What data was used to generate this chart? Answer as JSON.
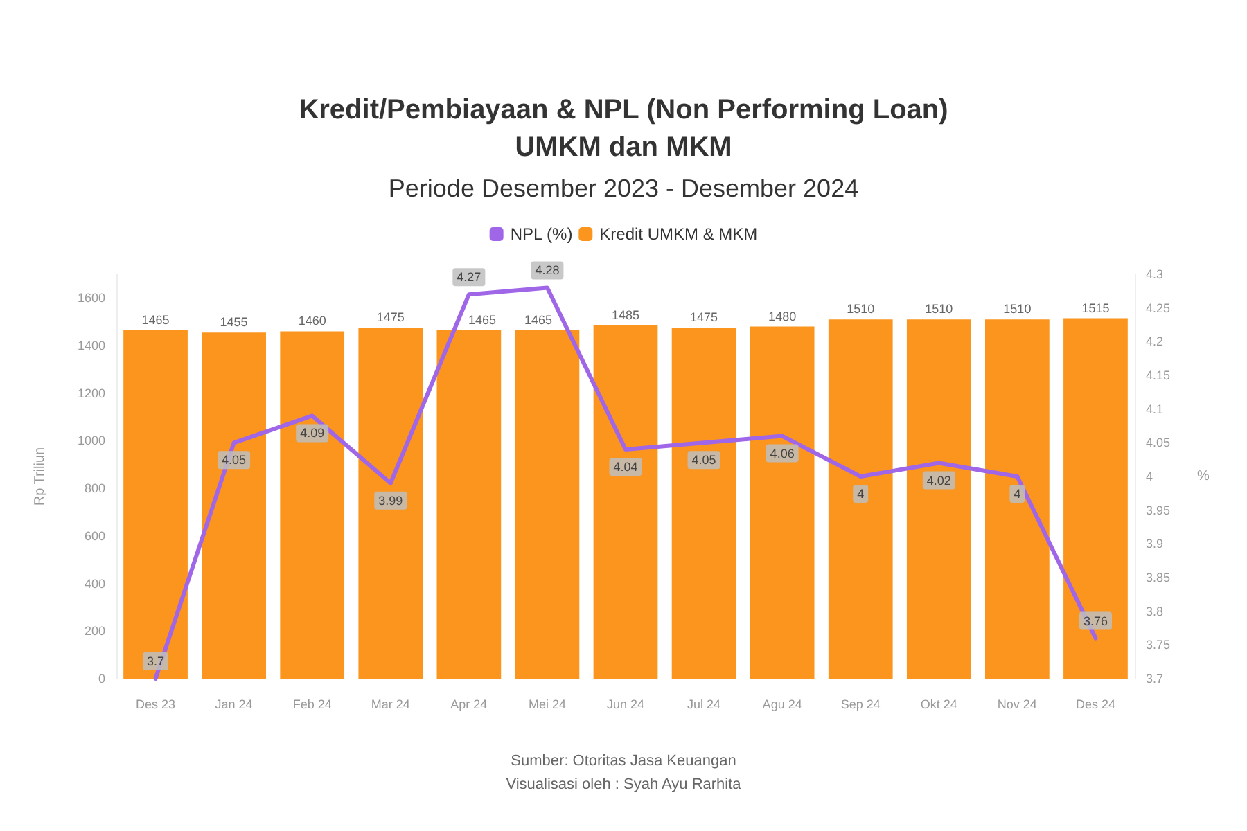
{
  "chart_data": {
    "type": "bar",
    "title": "Kredit/Pembiayaan & NPL (Non Performing Loan)\nUMKM dan MKM",
    "subtitle": "Periode Desember 2023 - Desember 2024",
    "ylabel": "Rp Triliun",
    "y2label": "%",
    "categories": [
      "Des 23",
      "Jan 24",
      "Feb 24",
      "Mar 24",
      "Apr 24",
      "Mei 24",
      "Jun 24",
      "Jul 24",
      "Agu 24",
      "Sep 24",
      "Okt 24",
      "Nov 24",
      "Des 24"
    ],
    "series": [
      {
        "name": "NPL (%)",
        "type": "line",
        "axis": "y2",
        "color": "#a066e8",
        "values": [
          3.7,
          4.05,
          4.09,
          3.99,
          4.27,
          4.28,
          4.04,
          4.05,
          4.06,
          4.0,
          4.02,
          4.0,
          3.76
        ]
      },
      {
        "name": "Kredit UMKM & MKM",
        "color": "#fb951d",
        "values": [
          1465,
          1455,
          1460,
          1475,
          1465,
          1465,
          1485,
          1475,
          1480,
          1510,
          1510,
          1510,
          1515
        ]
      }
    ],
    "ylim": [
      0,
      1700
    ],
    "yticks": [
      0,
      200,
      400,
      600,
      800,
      1000,
      1200,
      1400,
      1600
    ],
    "y2lim": [
      3.7,
      4.3
    ],
    "y2ticks": [
      3.7,
      3.75,
      3.8,
      3.85,
      3.9,
      3.95,
      4,
      4.05,
      4.1,
      4.15,
      4.2,
      4.25,
      4.3
    ],
    "data_labels": true,
    "legend": "top",
    "grid": false,
    "marker": "none",
    "annotations": [
      "Sumber: Otoritas Jasa Keuangan",
      "Visualisasi oleh : Syah Ayu Rarhita"
    ]
  }
}
